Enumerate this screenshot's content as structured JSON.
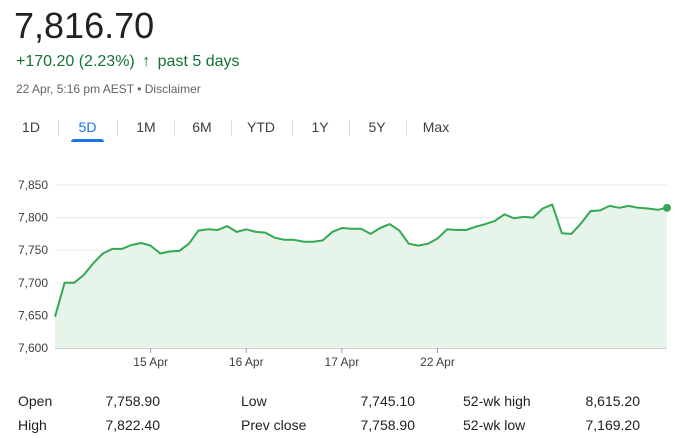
{
  "quote": {
    "price": "7,816.70",
    "change": "+170.20 (2.23%)",
    "period": "past 5 days",
    "timestamp": "22 Apr, 5:16 pm AEST",
    "separator": "•",
    "disclaimer": "Disclaimer",
    "up_color": "#137333"
  },
  "tabs": [
    {
      "label": "1D",
      "active": false
    },
    {
      "label": "5D",
      "active": true
    },
    {
      "label": "1M",
      "active": false
    },
    {
      "label": "6M",
      "active": false
    },
    {
      "label": "YTD",
      "active": false
    },
    {
      "label": "1Y",
      "active": false
    },
    {
      "label": "5Y",
      "active": false
    },
    {
      "label": "Max",
      "active": false
    }
  ],
  "chart_data": {
    "type": "area",
    "line_color": "#34a853",
    "fill_color": "#e6f4ea",
    "y_ticks": [
      7600,
      7650,
      7700,
      7750,
      7800,
      7850
    ],
    "y_tick_labels": [
      "7,600",
      "7,650",
      "7,700",
      "7,750",
      "7,800",
      "7,850"
    ],
    "ylim": [
      7600,
      7850
    ],
    "x_tick_labels": [
      "15 Apr",
      "16 Apr",
      "17 Apr",
      "22 Apr"
    ],
    "x_tick_index": [
      10,
      20,
      30,
      40
    ],
    "grid": true,
    "values": [
      7648,
      7700,
      7700,
      7712,
      7730,
      7745,
      7752,
      7752,
      7758,
      7761,
      7757,
      7745,
      7748,
      7749,
      7760,
      7780,
      7782,
      7781,
      7787,
      7778,
      7782,
      7778,
      7777,
      7769,
      7766,
      7766,
      7763,
      7763,
      7765,
      7778,
      7784,
      7783,
      7783,
      7775,
      7784,
      7790,
      7780,
      7760,
      7757,
      7760,
      7768,
      7782,
      7781,
      7781,
      7786,
      7790,
      7795,
      7805,
      7799,
      7801,
      7800,
      7814,
      7820,
      7776,
      7775,
      7791,
      7810,
      7811,
      7818,
      7815,
      7818,
      7815,
      7814,
      7812,
      7815
    ]
  },
  "stats": [
    {
      "label": "Open",
      "value": "7,758.90"
    },
    {
      "label": "High",
      "value": "7,822.40"
    },
    {
      "label": "Low",
      "value": "7,745.10"
    },
    {
      "label": "Prev close",
      "value": "7,758.90"
    },
    {
      "label": "52-wk high",
      "value": "8,615.20"
    },
    {
      "label": "52-wk low",
      "value": "7,169.20"
    }
  ]
}
